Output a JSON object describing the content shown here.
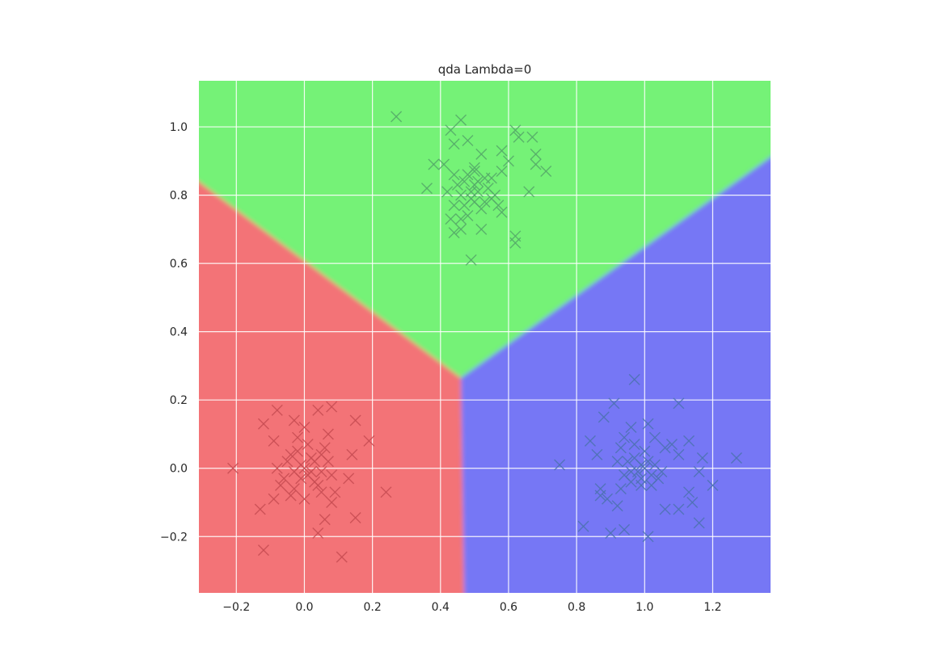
{
  "chart_data": {
    "type": "scatter",
    "title": "qda Lambda=0",
    "xlabel": "",
    "ylabel": "",
    "xlim": [
      -0.31,
      1.37
    ],
    "ylim": [
      -0.365,
      1.135
    ],
    "grid": true,
    "legend": "none",
    "x_ticks": [
      -0.2,
      0.0,
      0.2,
      0.4,
      0.6,
      0.8,
      1.0,
      1.2
    ],
    "x_tick_labels": [
      "−0.2",
      "0.0",
      "0.2",
      "0.4",
      "0.6",
      "0.8",
      "1.0",
      "1.2"
    ],
    "y_ticks": [
      -0.2,
      0.0,
      0.2,
      0.4,
      0.6,
      0.8,
      1.0
    ],
    "y_tick_labels": [
      "−0.2",
      "0.0",
      "0.2",
      "0.4",
      "0.6",
      "0.8",
      "1.0"
    ],
    "regions": {
      "class_colors": [
        "#f37377",
        "#75f277",
        "#7677f5"
      ],
      "junction": [
        0.46,
        0.265
      ],
      "boundary_red_green": [
        [
          -0.31,
          0.875
        ],
        [
          0.46,
          0.265
        ]
      ],
      "boundary_green_blue": [
        [
          0.46,
          0.265
        ],
        [
          1.37,
          0.945
        ]
      ],
      "boundary_red_blue": [
        [
          0.46,
          0.265
        ],
        [
          0.47,
          -0.365
        ]
      ]
    },
    "series": [
      {
        "marker": "x",
        "color": "#c74c52",
        "points": [
          [
            -0.21,
            0.0
          ],
          [
            -0.12,
            -0.24
          ],
          [
            0.11,
            -0.26
          ],
          [
            0.24,
            -0.07
          ],
          [
            0.15,
            -0.145
          ],
          [
            0.19,
            0.08
          ],
          [
            0.15,
            0.14
          ],
          [
            0.14,
            0.04
          ],
          [
            0.13,
            -0.03
          ],
          [
            0.08,
            0.18
          ],
          [
            0.04,
            0.17
          ],
          [
            -0.08,
            0.17
          ],
          [
            -0.12,
            0.13
          ],
          [
            -0.09,
            0.08
          ],
          [
            -0.03,
            0.14
          ],
          [
            0.07,
            0.1
          ],
          [
            0.08,
            -0.02
          ],
          [
            0.08,
            -0.1
          ],
          [
            0.06,
            -0.15
          ],
          [
            0.04,
            -0.19
          ],
          [
            -0.13,
            -0.12
          ],
          [
            -0.09,
            -0.09
          ],
          [
            -0.04,
            -0.08
          ],
          [
            0.0,
            -0.09
          ],
          [
            0.05,
            -0.07
          ],
          [
            0.09,
            -0.07
          ],
          [
            0.03,
            -0.04
          ],
          [
            -0.01,
            -0.03
          ],
          [
            -0.06,
            -0.03
          ],
          [
            -0.08,
            0.0
          ],
          [
            -0.05,
            0.02
          ],
          [
            -0.02,
            0.05
          ],
          [
            0.01,
            0.07
          ],
          [
            0.03,
            0.02
          ],
          [
            0.05,
            0.04
          ],
          [
            0.02,
            -0.01
          ],
          [
            0.0,
            0.0
          ],
          [
            -0.01,
            0.01
          ],
          [
            0.01,
            -0.02
          ],
          [
            0.02,
            0.03
          ],
          [
            -0.03,
            -0.01
          ],
          [
            0.04,
            -0.05
          ],
          [
            -0.02,
            0.09
          ],
          [
            0.06,
            0.06
          ],
          [
            -0.04,
            0.04
          ],
          [
            0.05,
            -0.01
          ],
          [
            -0.07,
            -0.05
          ],
          [
            0.07,
            0.02
          ],
          [
            0.0,
            0.12
          ],
          [
            -0.03,
            -0.06
          ]
        ]
      },
      {
        "marker": "x",
        "color": "#55a868",
        "points": [
          [
            0.27,
            1.03
          ],
          [
            0.46,
            1.02
          ],
          [
            0.43,
            0.99
          ],
          [
            0.62,
            0.99
          ],
          [
            0.67,
            0.97
          ],
          [
            0.63,
            0.97
          ],
          [
            0.48,
            0.96
          ],
          [
            0.44,
            0.95
          ],
          [
            0.58,
            0.93
          ],
          [
            0.68,
            0.92
          ],
          [
            0.52,
            0.92
          ],
          [
            0.41,
            0.89
          ],
          [
            0.38,
            0.89
          ],
          [
            0.71,
            0.87
          ],
          [
            0.68,
            0.89
          ],
          [
            0.58,
            0.87
          ],
          [
            0.6,
            0.9
          ],
          [
            0.55,
            0.85
          ],
          [
            0.36,
            0.82
          ],
          [
            0.66,
            0.81
          ],
          [
            0.44,
            0.77
          ],
          [
            0.43,
            0.73
          ],
          [
            0.44,
            0.69
          ],
          [
            0.46,
            0.7
          ],
          [
            0.52,
            0.7
          ],
          [
            0.62,
            0.68
          ],
          [
            0.62,
            0.66
          ],
          [
            0.49,
            0.61
          ],
          [
            0.58,
            0.75
          ],
          [
            0.55,
            0.79
          ],
          [
            0.47,
            0.84
          ],
          [
            0.5,
            0.83
          ],
          [
            0.51,
            0.81
          ],
          [
            0.53,
            0.85
          ],
          [
            0.49,
            0.79
          ],
          [
            0.45,
            0.83
          ],
          [
            0.48,
            0.86
          ],
          [
            0.5,
            0.78
          ],
          [
            0.52,
            0.76
          ],
          [
            0.47,
            0.77
          ],
          [
            0.42,
            0.81
          ],
          [
            0.54,
            0.82
          ],
          [
            0.56,
            0.8
          ],
          [
            0.46,
            0.8
          ],
          [
            0.5,
            0.87
          ],
          [
            0.49,
            0.81
          ],
          [
            0.51,
            0.84
          ],
          [
            0.44,
            0.86
          ],
          [
            0.57,
            0.77
          ],
          [
            0.48,
            0.74
          ],
          [
            0.53,
            0.78
          ],
          [
            0.46,
            0.73
          ],
          [
            0.5,
            0.88
          ]
        ]
      },
      {
        "marker": "x",
        "color": "#4c72b0",
        "points": [
          [
            0.75,
            0.01
          ],
          [
            0.82,
            -0.17
          ],
          [
            0.9,
            -0.19
          ],
          [
            0.94,
            -0.18
          ],
          [
            1.01,
            -0.2
          ],
          [
            1.16,
            -0.16
          ],
          [
            1.14,
            -0.1
          ],
          [
            1.1,
            -0.12
          ],
          [
            1.06,
            -0.12
          ],
          [
            1.13,
            -0.07
          ],
          [
            1.2,
            -0.05
          ],
          [
            1.27,
            0.03
          ],
          [
            1.17,
            0.03
          ],
          [
            1.16,
            -0.01
          ],
          [
            1.13,
            0.08
          ],
          [
            1.1,
            0.04
          ],
          [
            1.1,
            0.19
          ],
          [
            0.97,
            0.26
          ],
          [
            0.91,
            0.19
          ],
          [
            0.88,
            0.15
          ],
          [
            0.84,
            0.08
          ],
          [
            0.86,
            0.04
          ],
          [
            0.87,
            -0.06
          ],
          [
            0.87,
            -0.08
          ],
          [
            0.89,
            -0.09
          ],
          [
            0.92,
            -0.11
          ],
          [
            0.93,
            -0.06
          ],
          [
            0.96,
            -0.04
          ],
          [
            0.99,
            -0.03
          ],
          [
            1.02,
            -0.05
          ],
          [
            1.04,
            -0.03
          ],
          [
            1.06,
            0.06
          ],
          [
            1.03,
            0.09
          ],
          [
            1.01,
            0.13
          ],
          [
            0.96,
            0.12
          ],
          [
            0.94,
            0.09
          ],
          [
            0.93,
            0.06
          ],
          [
            0.97,
            0.03
          ],
          [
            0.99,
            0.01
          ],
          [
            1.0,
            0.0
          ],
          [
            0.98,
            -0.01
          ],
          [
            1.01,
            0.02
          ],
          [
            0.96,
            -0.01
          ],
          [
            1.03,
            0.01
          ],
          [
            0.95,
            0.02
          ],
          [
            1.0,
            0.05
          ],
          [
            0.97,
            0.07
          ],
          [
            1.02,
            -0.02
          ],
          [
            0.94,
            -0.02
          ],
          [
            1.05,
            -0.01
          ],
          [
            0.99,
            -0.05
          ],
          [
            1.08,
            0.07
          ],
          [
            0.92,
            0.02
          ]
        ]
      }
    ]
  }
}
